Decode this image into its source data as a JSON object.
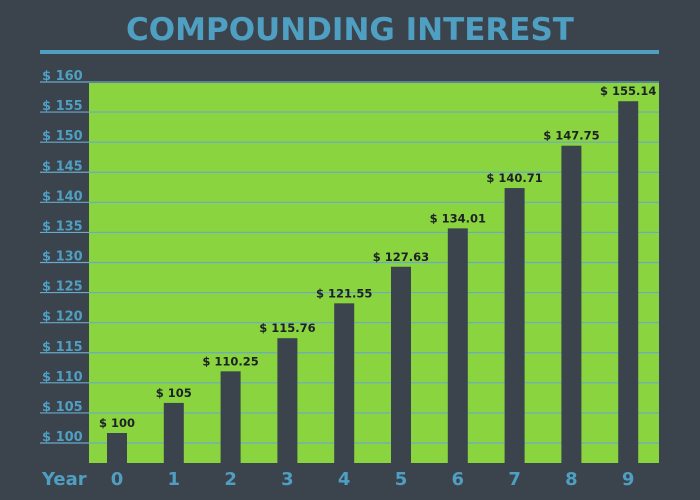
{
  "chart_data": {
    "type": "bar",
    "title": "COMPOUNDING INTEREST",
    "xlabel": "Year",
    "ylabel": "",
    "categories": [
      "0",
      "1",
      "2",
      "3",
      "4",
      "5",
      "6",
      "7",
      "8",
      "9"
    ],
    "values": [
      100,
      105,
      110.25,
      115.76,
      121.55,
      127.63,
      134.01,
      140.71,
      147.75,
      155.14
    ],
    "value_labels": [
      "$ 100",
      "$ 105",
      "$ 110.25",
      "$ 115.76",
      "$ 121.55",
      "$ 127.63",
      "$ 134.01",
      "$ 140.71",
      "$ 147.75",
      "$ 155.14"
    ],
    "yticks": [
      100,
      105,
      110,
      115,
      120,
      125,
      130,
      135,
      140,
      145,
      150,
      155,
      160
    ],
    "ytick_labels": [
      "$ 100",
      "$ 105",
      "$ 110",
      "$ 115",
      "$ 120",
      "$ 125",
      "$ 130",
      "$ 135",
      "$ 140",
      "$ 145",
      "$ 150",
      "$ 155",
      "$ 160"
    ],
    "ylim": [
      95,
      160
    ],
    "grid": true,
    "colors": {
      "background": "#3b444c",
      "plot_area": "#8ad43f",
      "bar": "#3b444c",
      "accent": "#4f9fc3",
      "gridline": "#6aa9c8",
      "data_label": "#1d2226"
    }
  }
}
